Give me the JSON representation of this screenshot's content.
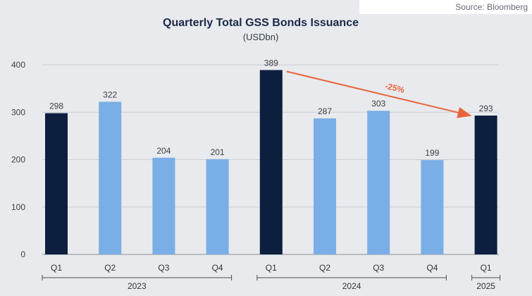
{
  "source_text": "Source: Bloomberg",
  "colors": {
    "dark": "#0d1f3f",
    "light": "#7aaee6",
    "arrow": "#e8643c",
    "grid": "#c9ccd1",
    "background": "#e8eaed"
  },
  "chart_data": {
    "type": "bar",
    "title": "Quarterly Total GSS Bonds Issuance",
    "subtitle": "(USDbn)",
    "xlabel": "",
    "ylabel": "",
    "ylim": [
      0,
      400
    ],
    "yticks": [
      "0",
      "100",
      "200",
      "300",
      "400"
    ],
    "grid": true,
    "categories": [
      "Q1",
      "Q2",
      "Q3",
      "Q4",
      "Q1",
      "Q2",
      "Q3",
      "Q4",
      "Q1"
    ],
    "values": [
      298,
      322,
      204,
      201,
      389,
      287,
      303,
      199,
      293
    ],
    "highlight": [
      true,
      false,
      false,
      false,
      true,
      false,
      false,
      false,
      true
    ],
    "year_groups": [
      {
        "label": "2023",
        "start": 0,
        "end": 3
      },
      {
        "label": "2024",
        "start": 4,
        "end": 7
      },
      {
        "label": "2025",
        "start": 8,
        "end": 8
      }
    ],
    "annotation": {
      "text": "-25%",
      "from": 4,
      "to": 8
    }
  }
}
